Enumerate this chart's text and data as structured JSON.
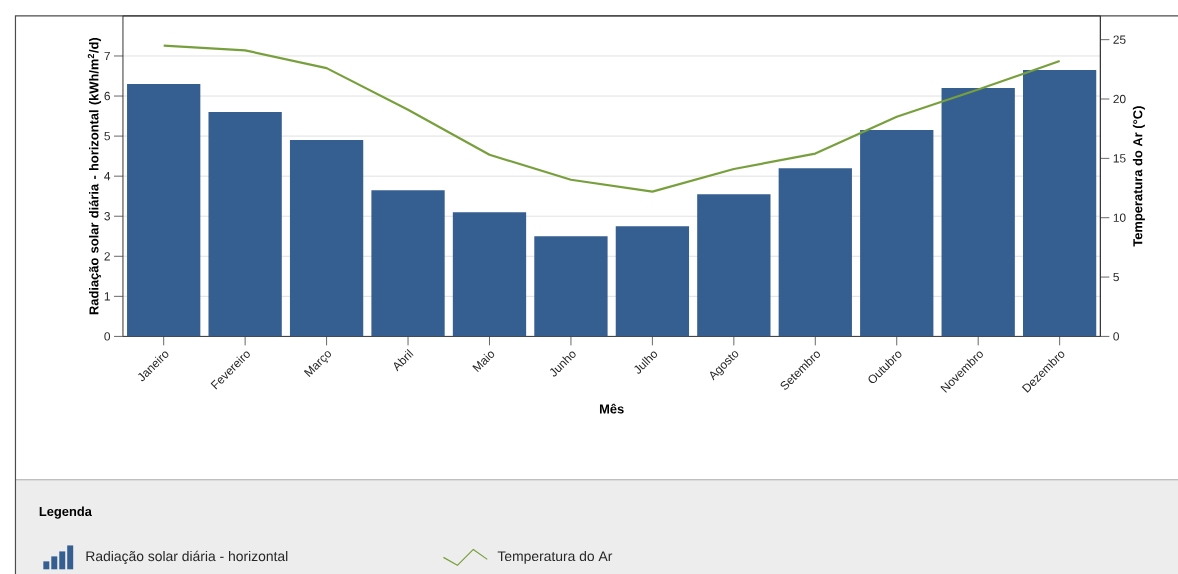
{
  "chart_data": {
    "type": "bar",
    "xlabel": "Mês",
    "ylabel": "Radiação solar diária - horizontal (kWh/m$^{2}$/d)",
    "y2label": "Temperatura do Ar (°C)",
    "legend_title": "Legenda",
    "categories": [
      "Janeiro",
      "Fevereiro",
      "Março",
      "Abril",
      "Maio",
      "Junho",
      "Julho",
      "Agosto",
      "Setembro",
      "Outubro",
      "Novembro",
      "Dezembro"
    ],
    "series": [
      {
        "name": "Radiação solar diária - horizontal",
        "color": "#365f91",
        "values": [
          6.3,
          5.6,
          4.9,
          3.65,
          3.1,
          2.5,
          2.75,
          3.55,
          4.2,
          5.15,
          6.2,
          6.65
        ]
      },
      {
        "name": "Temperatura do Ar",
        "type": "line",
        "axis": "y2",
        "color": "#77a03c",
        "values": [
          24.5,
          24.1,
          22.6,
          19.1,
          15.3,
          13.2,
          12.2,
          14.1,
          15.4,
          18.5,
          20.8,
          23.2
        ]
      }
    ],
    "ylim": [
      0,
      8
    ],
    "yticks": [
      0,
      1,
      2,
      3,
      4,
      5,
      6,
      7
    ],
    "y2lim": [
      0,
      27
    ],
    "y2ticks": [
      0,
      5,
      10,
      15,
      20,
      25
    ],
    "grid": "y",
    "legend": "bottom"
  }
}
